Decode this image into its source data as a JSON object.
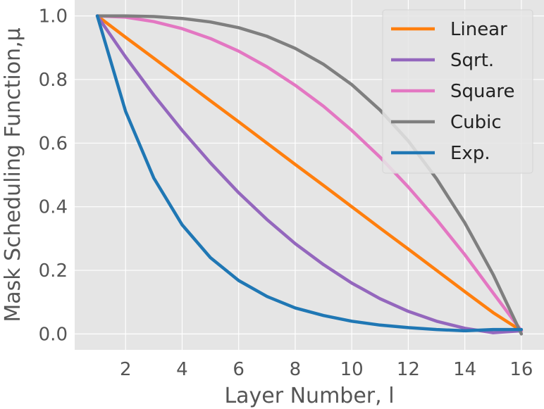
{
  "chart_data": {
    "type": "line",
    "xlabel": "Layer Number, l",
    "ylabel": "Mask Scheduling Function,μ",
    "xlim": [
      0.2,
      16.8
    ],
    "ylim": [
      -0.05,
      1.05
    ],
    "x_ticks": [
      2,
      4,
      6,
      8,
      10,
      12,
      14,
      16
    ],
    "y_ticks": [
      0.0,
      0.2,
      0.4,
      0.6,
      0.8,
      1.0
    ],
    "x_tick_labels": [
      "2",
      "4",
      "6",
      "8",
      "10",
      "12",
      "14",
      "16"
    ],
    "y_tick_labels": [
      "0.0",
      "0.2",
      "0.4",
      "0.6",
      "0.8",
      "1.0"
    ],
    "grid": true,
    "legend_position": "top-right",
    "x": [
      1,
      2,
      3,
      4,
      5,
      6,
      7,
      8,
      9,
      10,
      11,
      12,
      13,
      14,
      15,
      16
    ],
    "series": [
      {
        "name": "Linear",
        "color": "#ff7f0e",
        "values": [
          1.0,
          0.933,
          0.867,
          0.8,
          0.733,
          0.667,
          0.6,
          0.533,
          0.467,
          0.4,
          0.333,
          0.267,
          0.2,
          0.133,
          0.067,
          0.01
        ]
      },
      {
        "name": "Sqrt.",
        "color": "#9467bd",
        "values": [
          1.0,
          0.871,
          0.751,
          0.64,
          0.538,
          0.444,
          0.36,
          0.284,
          0.218,
          0.16,
          0.111,
          0.071,
          0.04,
          0.018,
          0.004,
          0.01
        ]
      },
      {
        "name": "Square",
        "color": "#e377c2",
        "values": [
          1.0,
          0.996,
          0.982,
          0.96,
          0.929,
          0.889,
          0.84,
          0.782,
          0.716,
          0.64,
          0.556,
          0.462,
          0.36,
          0.249,
          0.129,
          0.01
        ]
      },
      {
        "name": "Cubic",
        "color": "#7f7f7f",
        "values": [
          1.0,
          1.0,
          0.998,
          0.992,
          0.981,
          0.963,
          0.936,
          0.898,
          0.848,
          0.784,
          0.704,
          0.607,
          0.488,
          0.349,
          0.187,
          0.0
        ]
      },
      {
        "name": "Exp.",
        "color": "#1f77b4",
        "values": [
          1.0,
          0.7,
          0.49,
          0.343,
          0.24,
          0.168,
          0.118,
          0.082,
          0.058,
          0.04,
          0.028,
          0.02,
          0.014,
          0.01,
          0.014,
          0.014
        ]
      }
    ]
  }
}
